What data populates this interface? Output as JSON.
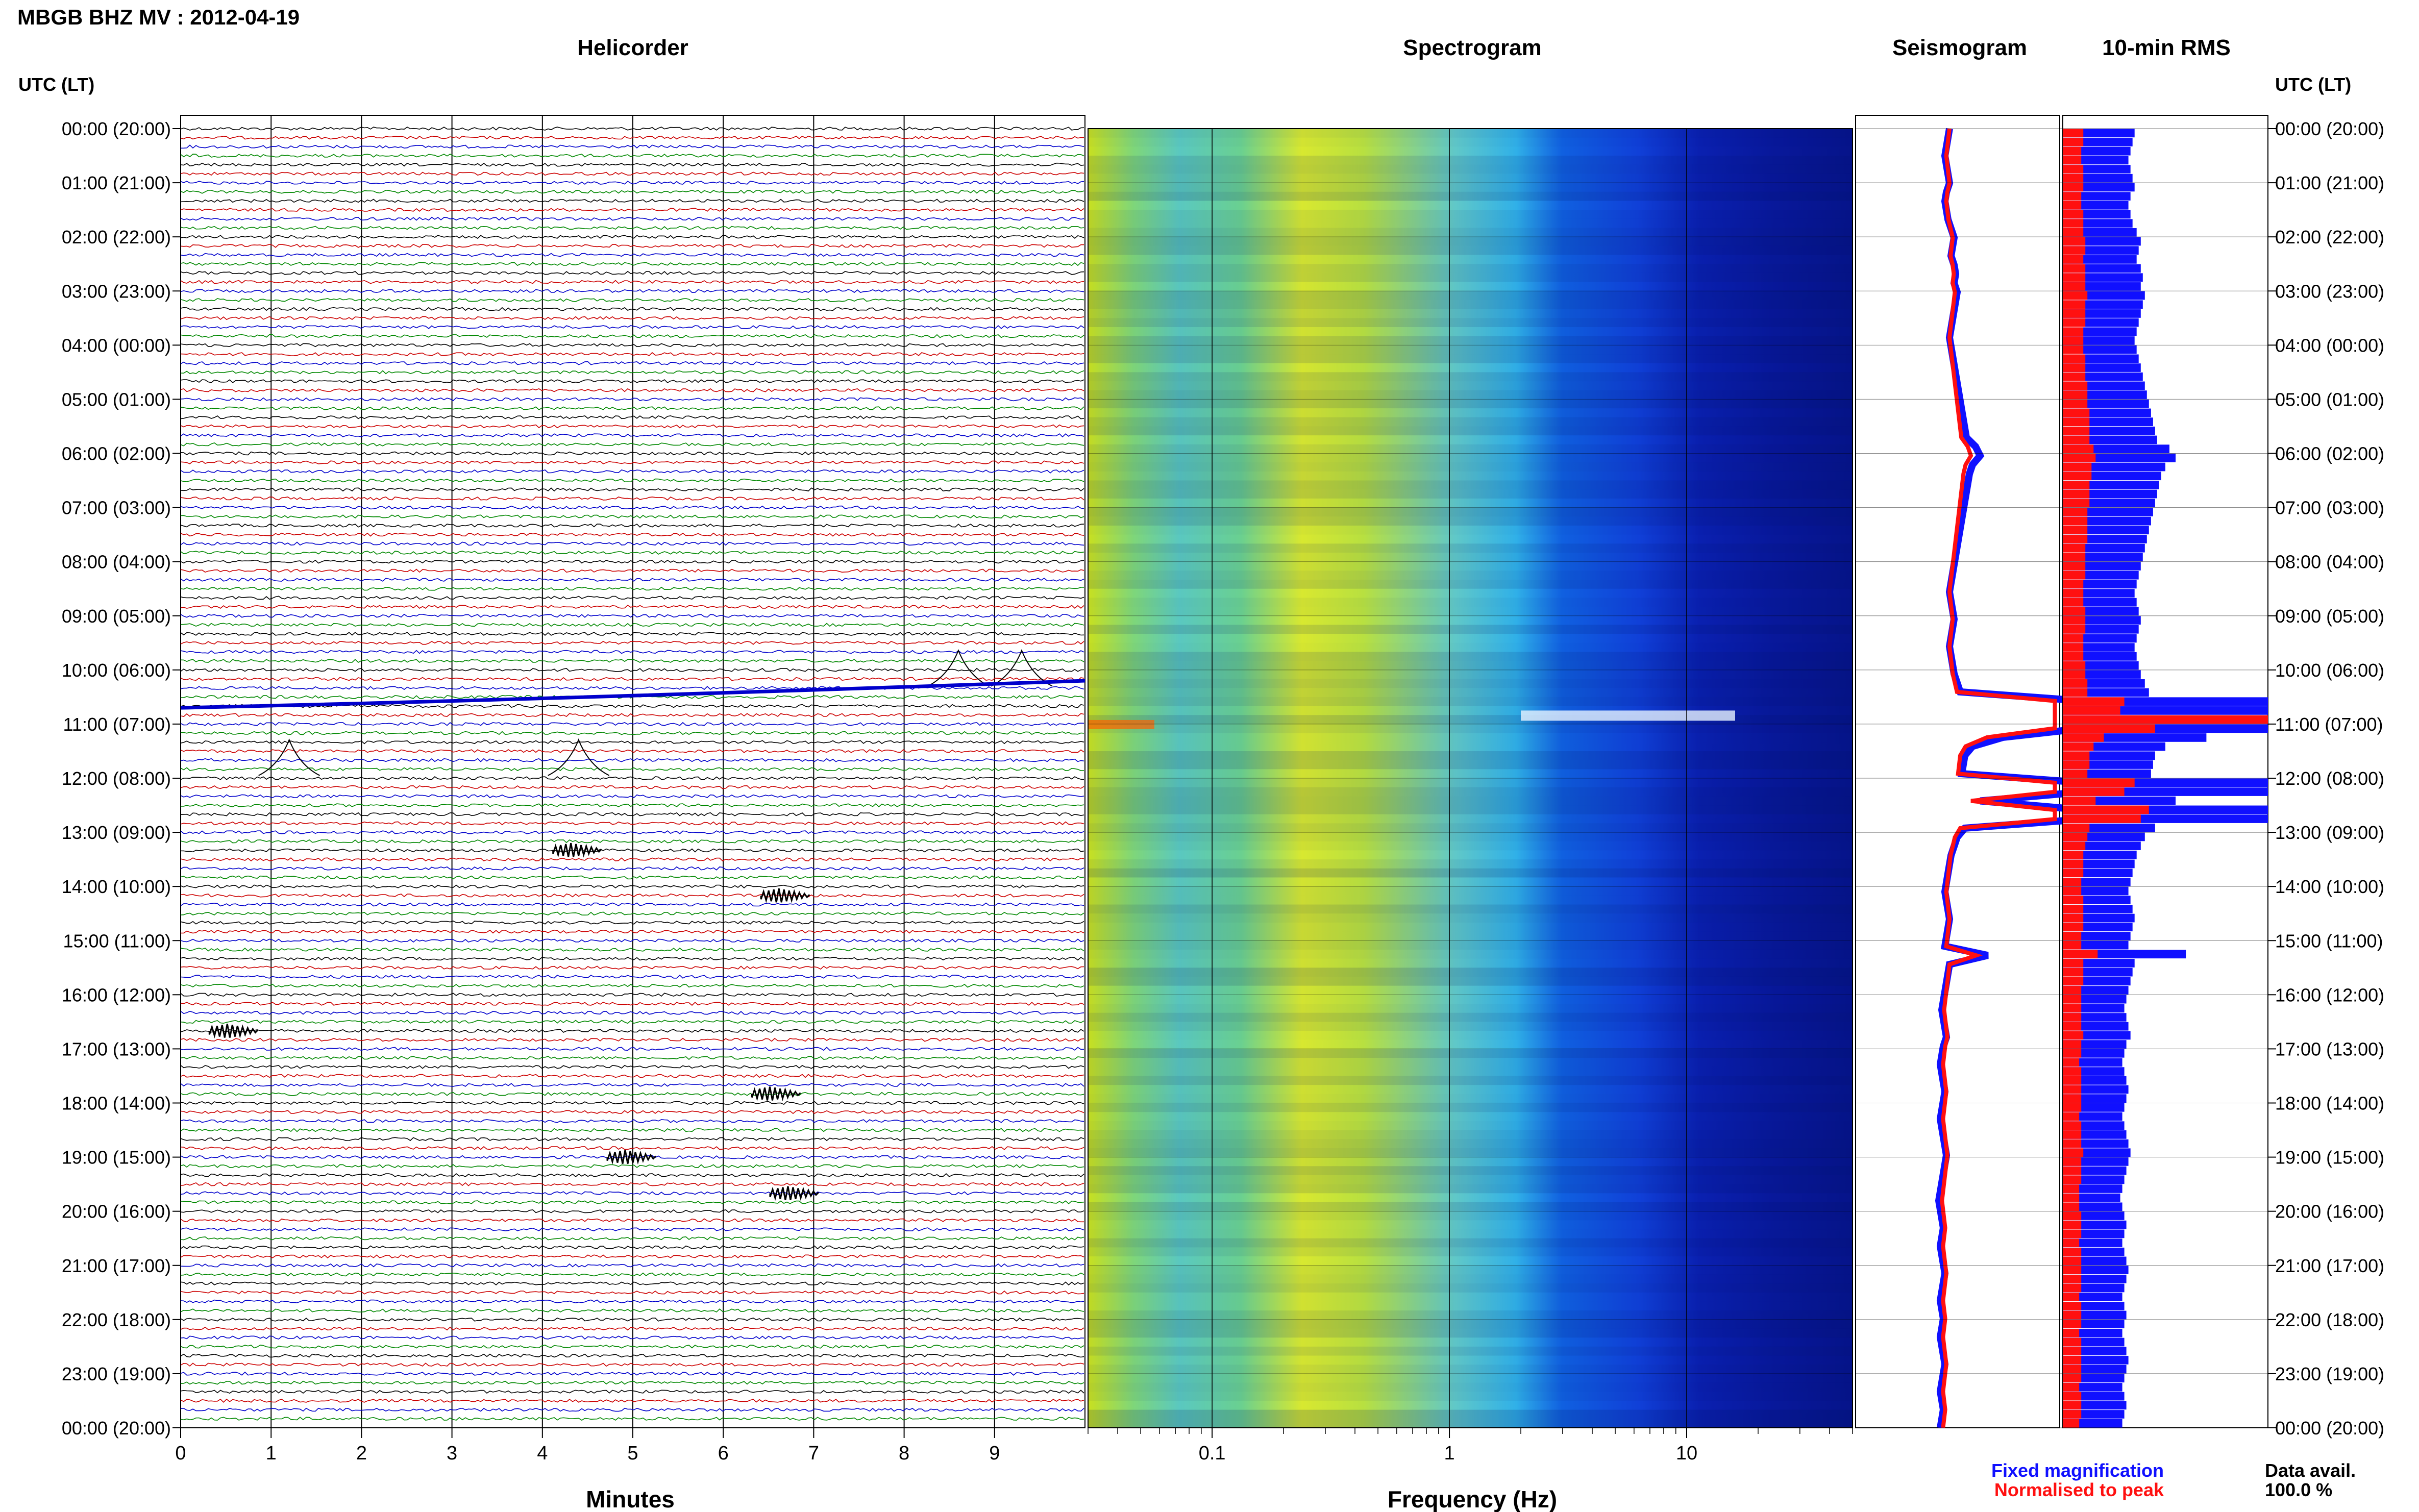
{
  "header": {
    "station_title": "MBGB BHZ MV : 2012-04-19"
  },
  "panels": {
    "helicorder_title": "Helicorder",
    "spectrogram_title": "Spectrogram",
    "seismogram_title": "Seismogram",
    "rms_title": "10-min RMS"
  },
  "axes": {
    "time_label_left": "UTC (LT)",
    "time_label_right": "UTC (LT)",
    "time_ticks": [
      "00:00 (20:00)",
      "01:00 (21:00)",
      "02:00 (22:00)",
      "03:00 (23:00)",
      "04:00 (00:00)",
      "05:00 (01:00)",
      "06:00 (02:00)",
      "07:00 (03:00)",
      "08:00 (04:00)",
      "09:00 (05:00)",
      "10:00 (06:00)",
      "11:00 (07:00)",
      "12:00 (08:00)",
      "13:00 (09:00)",
      "14:00 (10:00)",
      "15:00 (11:00)",
      "16:00 (12:00)",
      "17:00 (13:00)",
      "18:00 (14:00)",
      "19:00 (15:00)",
      "20:00 (16:00)",
      "21:00 (17:00)",
      "22:00 (18:00)",
      "23:00 (19:00)",
      "00:00 (20:00)"
    ],
    "minutes_label": "Minutes",
    "minutes_ticks": [
      "0",
      "1",
      "2",
      "3",
      "4",
      "5",
      "6",
      "7",
      "8",
      "9"
    ],
    "frequency_label": "Frequency (Hz)",
    "frequency_ticks": [
      "0.1",
      "1",
      "10"
    ]
  },
  "legend": {
    "fixed": "Fixed magnification",
    "normalised": "Normalised to peak",
    "fixed_color": "#1010ff",
    "normalised_color": "#ff1010"
  },
  "availability": {
    "label": "Data avail.",
    "value": "100.0 %"
  },
  "chart_data": {
    "type": "helicorder",
    "date": "2012-04-19",
    "station": "MBGB BHZ MV",
    "hours": 24,
    "trace_colors": [
      "#000000",
      "#cc0000",
      "#0000cc",
      "#008800"
    ],
    "minutes_range": [
      0,
      10
    ],
    "frequency_range_hz": [
      0.03,
      50
    ],
    "frequency_scale": "log",
    "events": [
      {
        "hour": 10.3,
        "minute": 8.6,
        "type": "long-period"
      },
      {
        "hour": 10.3,
        "minute": 9.3,
        "type": "long-period"
      },
      {
        "hour": 11.95,
        "minute": 1.2,
        "type": "long-period"
      },
      {
        "hour": 11.95,
        "minute": 4.4,
        "type": "long-period"
      },
      {
        "hour": 13.33,
        "minute": 4.4,
        "type": "local"
      },
      {
        "hour": 14.17,
        "minute": 6.7,
        "type": "local"
      },
      {
        "hour": 16.67,
        "minute": 0.6,
        "type": "local"
      },
      {
        "hour": 17.83,
        "minute": 6.6,
        "type": "local"
      },
      {
        "hour": 19.0,
        "minute": 5.0,
        "type": "local"
      },
      {
        "hour": 19.67,
        "minute": 6.8,
        "type": "local"
      }
    ],
    "rms_fixed": [
      0.35,
      0.34,
      0.33,
      0.32,
      0.33,
      0.34,
      0.35,
      0.33,
      0.32,
      0.33,
      0.34,
      0.36,
      0.38,
      0.37,
      0.36,
      0.38,
      0.39,
      0.38,
      0.4,
      0.39,
      0.38,
      0.37,
      0.36,
      0.35,
      0.36,
      0.37,
      0.38,
      0.39,
      0.4,
      0.41,
      0.42,
      0.43,
      0.44,
      0.45,
      0.46,
      0.52,
      0.55,
      0.5,
      0.48,
      0.47,
      0.46,
      0.45,
      0.44,
      0.43,
      0.42,
      0.41,
      0.4,
      0.39,
      0.38,
      0.37,
      0.36,
      0.35,
      0.36,
      0.37,
      0.38,
      0.37,
      0.36,
      0.35,
      0.36,
      0.37,
      0.38,
      0.4,
      0.42,
      1.0,
      1.0,
      1.0,
      1.0,
      0.7,
      0.5,
      0.45,
      0.44,
      0.43,
      1.0,
      1.0,
      0.55,
      1.0,
      1.0,
      0.45,
      0.4,
      0.38,
      0.36,
      0.35,
      0.34,
      0.33,
      0.32,
      0.33,
      0.34,
      0.35,
      0.34,
      0.33,
      0.32,
      0.6,
      0.35,
      0.34,
      0.33,
      0.32,
      0.31,
      0.3,
      0.31,
      0.32,
      0.33,
      0.31,
      0.3,
      0.29,
      0.3,
      0.31,
      0.32,
      0.31,
      0.3,
      0.29,
      0.3,
      0.31,
      0.32,
      0.33,
      0.32,
      0.31,
      0.3,
      0.29,
      0.28,
      0.29,
      0.3,
      0.31,
      0.3,
      0.29,
      0.3,
      0.31,
      0.32,
      0.31,
      0.3,
      0.29,
      0.3,
      0.31,
      0.3,
      0.29,
      0.3,
      0.31,
      0.32,
      0.31,
      0.3,
      0.29,
      0.3,
      0.31,
      0.3,
      0.29
    ],
    "rms_normalised": [
      0.1,
      0.1,
      0.09,
      0.09,
      0.1,
      0.1,
      0.1,
      0.09,
      0.09,
      0.1,
      0.1,
      0.1,
      0.11,
      0.11,
      0.1,
      0.11,
      0.11,
      0.11,
      0.12,
      0.11,
      0.11,
      0.11,
      0.1,
      0.1,
      0.1,
      0.11,
      0.11,
      0.11,
      0.12,
      0.12,
      0.12,
      0.13,
      0.13,
      0.13,
      0.13,
      0.15,
      0.16,
      0.14,
      0.14,
      0.13,
      0.13,
      0.13,
      0.12,
      0.12,
      0.12,
      0.12,
      0.11,
      0.11,
      0.11,
      0.11,
      0.1,
      0.1,
      0.1,
      0.11,
      0.11,
      0.11,
      0.1,
      0.1,
      0.1,
      0.11,
      0.11,
      0.12,
      0.12,
      0.3,
      0.28,
      1.0,
      0.45,
      0.2,
      0.15,
      0.13,
      0.13,
      0.12,
      0.35,
      0.3,
      0.16,
      0.42,
      0.38,
      0.13,
      0.12,
      0.11,
      0.1,
      0.1,
      0.1,
      0.09,
      0.09,
      0.1,
      0.1,
      0.1,
      0.1,
      0.09,
      0.09,
      0.17,
      0.1,
      0.1,
      0.1,
      0.09,
      0.09,
      0.09,
      0.09,
      0.09,
      0.1,
      0.09,
      0.09,
      0.08,
      0.09,
      0.09,
      0.09,
      0.09,
      0.09,
      0.08,
      0.09,
      0.09,
      0.09,
      0.1,
      0.09,
      0.09,
      0.09,
      0.08,
      0.08,
      0.08,
      0.09,
      0.09,
      0.09,
      0.08,
      0.09,
      0.09,
      0.09,
      0.09,
      0.09,
      0.08,
      0.09,
      0.09,
      0.09,
      0.08,
      0.09,
      0.09,
      0.09,
      0.09,
      0.09,
      0.08,
      0.09,
      0.09,
      0.09,
      0.08
    ]
  }
}
